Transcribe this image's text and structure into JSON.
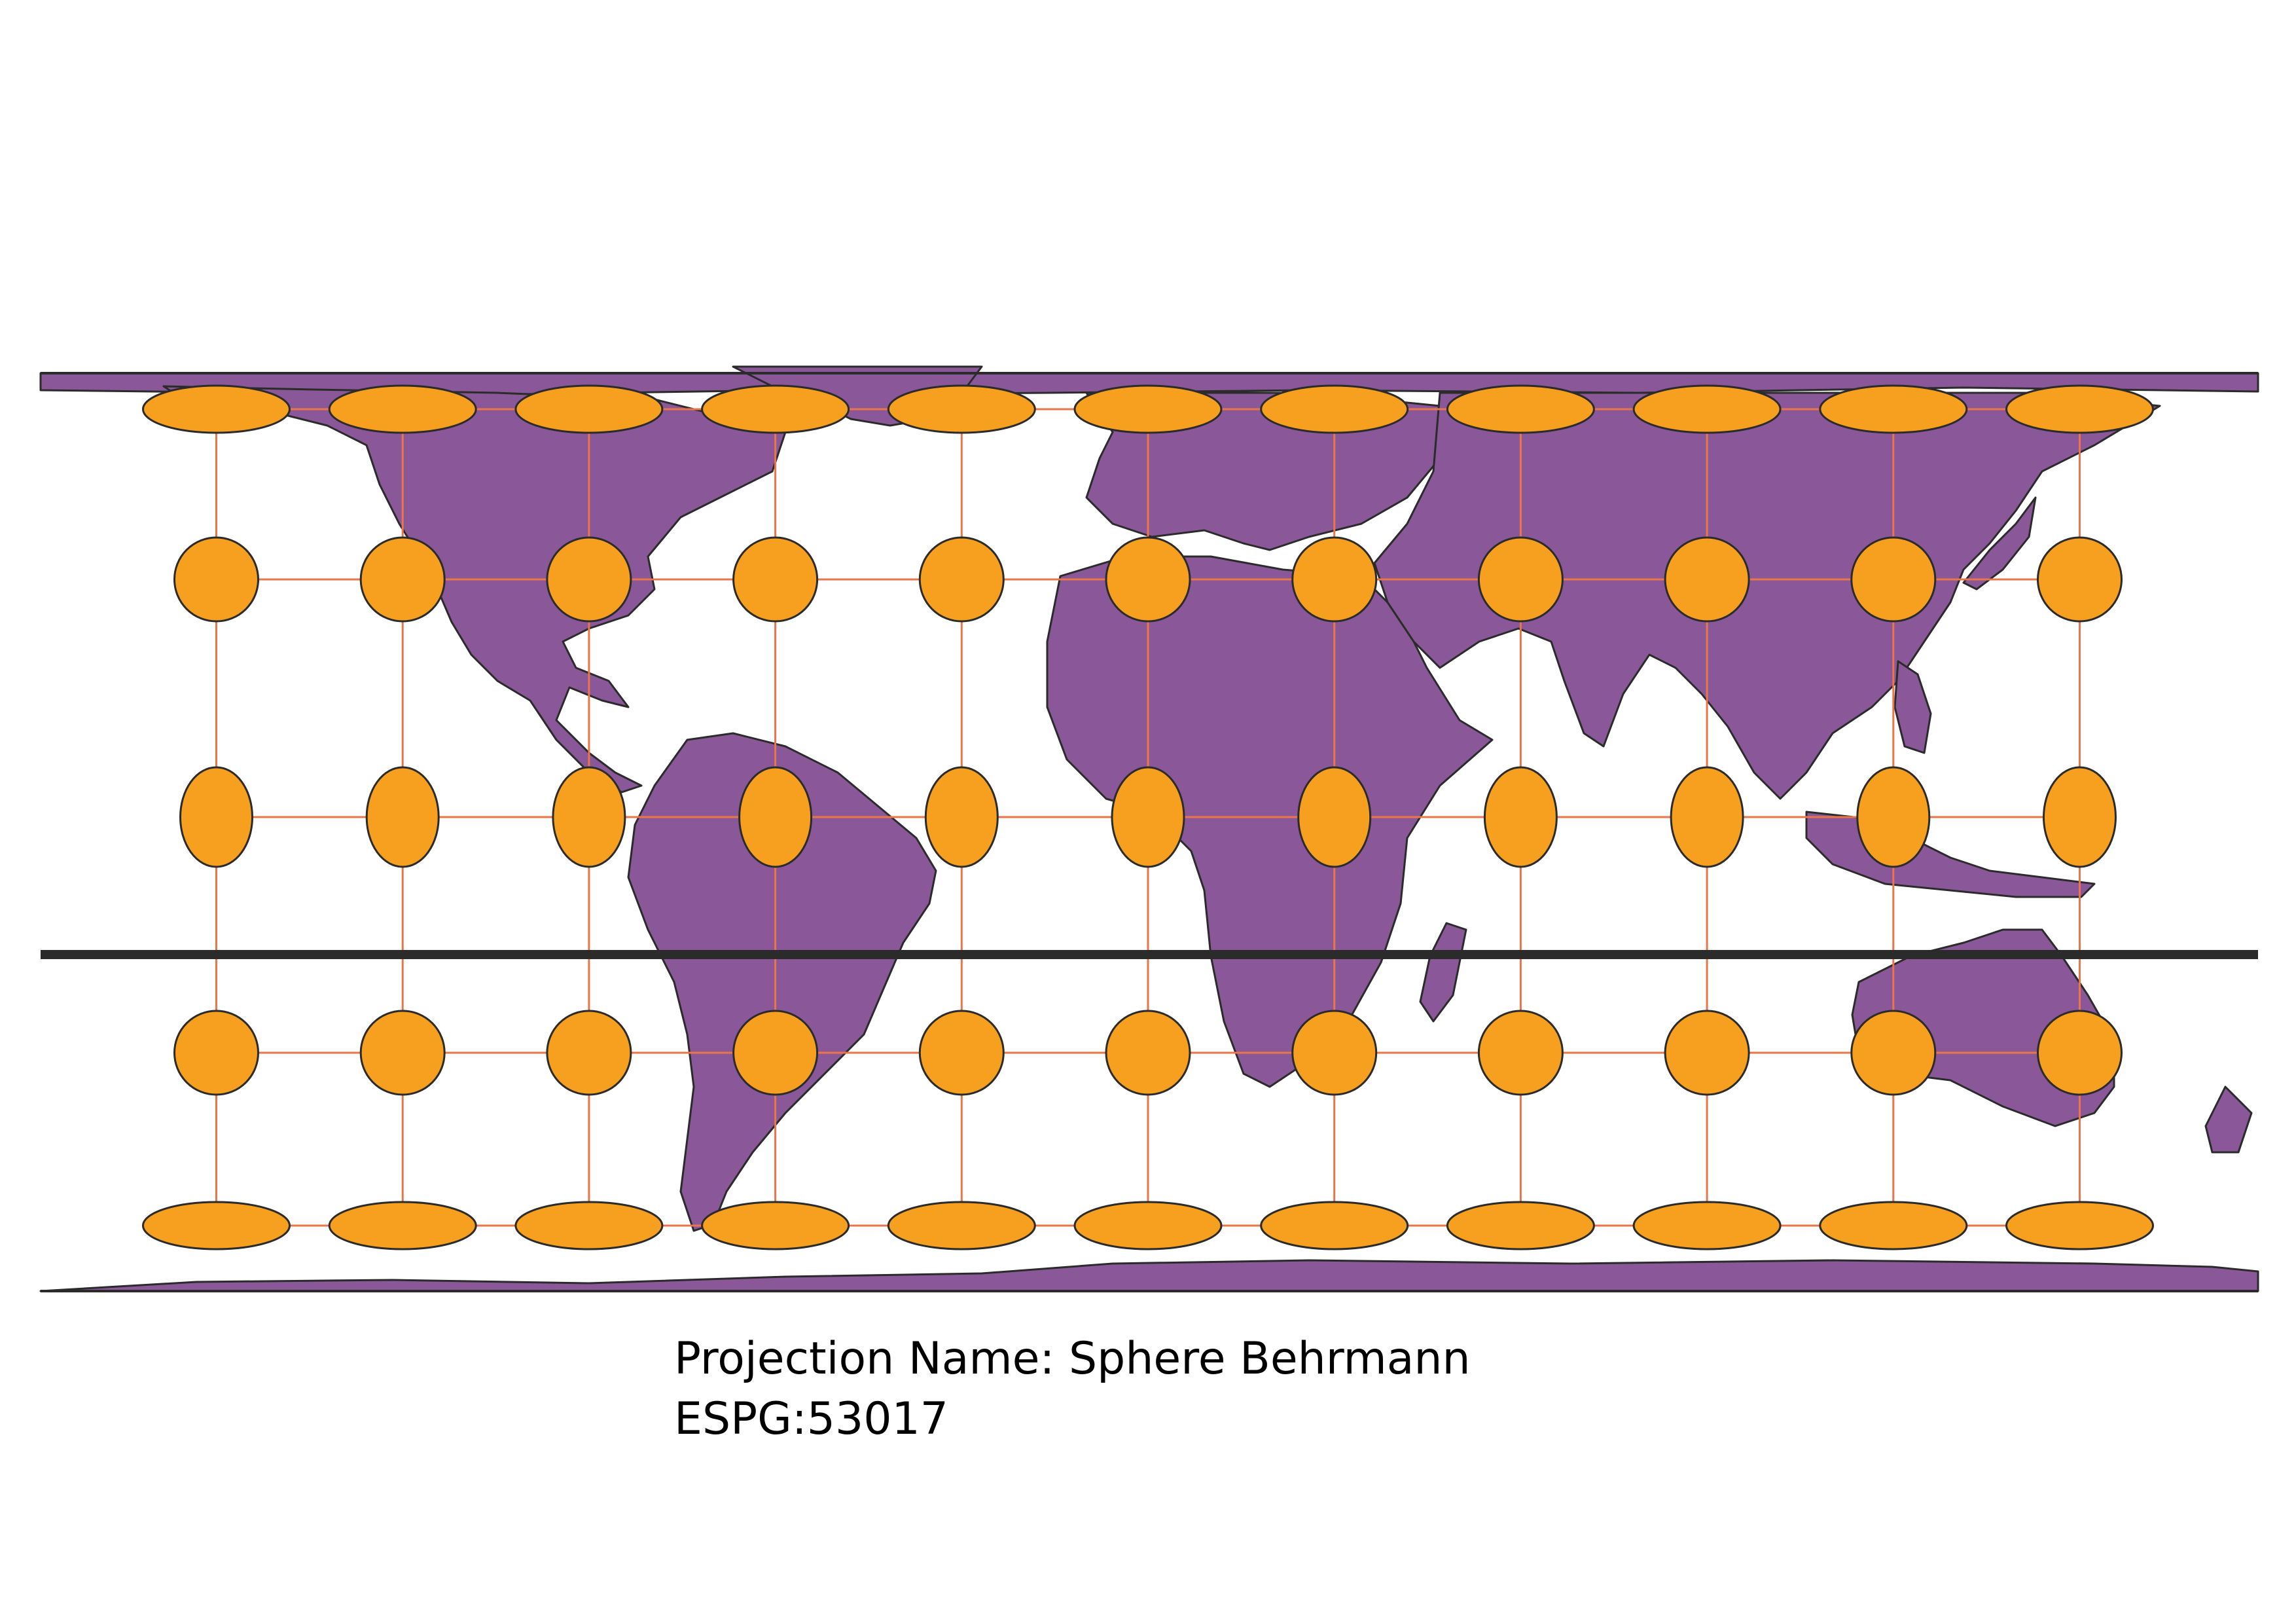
{
  "caption": {
    "projection_name": "Projection Name: Sphere Behrmann",
    "code": "ESPG:53017"
  },
  "colors": {
    "land": "#8a5899",
    "indicatrix": "#f7a01f",
    "graticule": "#e9764a",
    "outline": "#2b2b2b",
    "background": "#ffffff"
  },
  "graticule": {
    "longitudes": [
      -150,
      -120,
      -90,
      -60,
      -30,
      0,
      30,
      60,
      90,
      120,
      150
    ],
    "latitudes": [
      75,
      45,
      15,
      -15,
      -45,
      -75
    ]
  },
  "indicatrix_layer": "tissot-ellipses",
  "map_feature": "world-countries",
  "horizontal_line": "thick-black-parallel"
}
